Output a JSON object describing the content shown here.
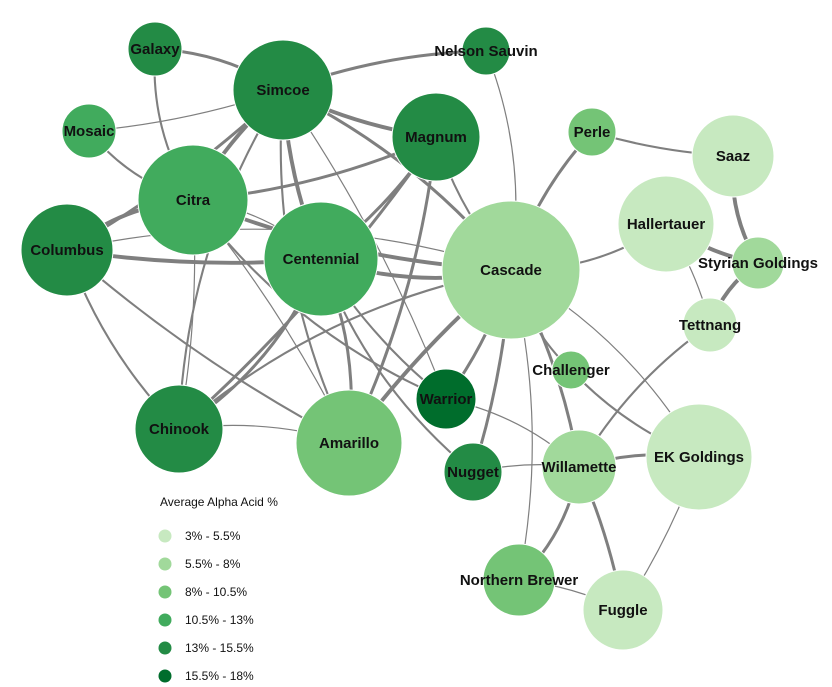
{
  "legend": {
    "title": "Average Alpha Acid %",
    "bins": [
      {
        "label": "3% - 5.5%",
        "color": "#c7e9c0"
      },
      {
        "label": "5.5% - 8%",
        "color": "#a1d99b"
      },
      {
        "label": "8% - 10.5%",
        "color": "#74c476"
      },
      {
        "label": "10.5% - 13%",
        "color": "#41ab5d"
      },
      {
        "label": "13% - 15.5%",
        "color": "#238b45"
      },
      {
        "label": "15.5% - 18%",
        "color": "#006d2c"
      }
    ]
  },
  "nodes": [
    {
      "id": "galaxy",
      "label": "Galaxy",
      "bin": 4
    },
    {
      "id": "nelson-sauvin",
      "label": "Nelson Sauvin",
      "bin": 4
    },
    {
      "id": "simcoe",
      "label": "Simcoe",
      "bin": 4
    },
    {
      "id": "mosaic",
      "label": "Mosaic",
      "bin": 3
    },
    {
      "id": "magnum",
      "label": "Magnum",
      "bin": 4
    },
    {
      "id": "perle",
      "label": "Perle",
      "bin": 2
    },
    {
      "id": "saaz",
      "label": "Saaz",
      "bin": 0
    },
    {
      "id": "citra",
      "label": "Citra",
      "bin": 3
    },
    {
      "id": "hallertauer",
      "label": "Hallertauer",
      "bin": 0
    },
    {
      "id": "columbus",
      "label": "Columbus",
      "bin": 4
    },
    {
      "id": "centennial",
      "label": "Centennial",
      "bin": 3
    },
    {
      "id": "cascade",
      "label": "Cascade",
      "bin": 1
    },
    {
      "id": "styrian",
      "label": "Styrian Goldings",
      "bin": 1
    },
    {
      "id": "tettnang",
      "label": "Tettnang",
      "bin": 0
    },
    {
      "id": "challenger",
      "label": "Challenger",
      "bin": 2
    },
    {
      "id": "warrior",
      "label": "Warrior",
      "bin": 5
    },
    {
      "id": "chinook",
      "label": "Chinook",
      "bin": 4
    },
    {
      "id": "amarillo",
      "label": "Amarillo",
      "bin": 2
    },
    {
      "id": "ek-goldings",
      "label": "EK Goldings",
      "bin": 0
    },
    {
      "id": "nugget",
      "label": "Nugget",
      "bin": 4
    },
    {
      "id": "willamette",
      "label": "Willamette",
      "bin": 1
    },
    {
      "id": "northern",
      "label": "Northern Brewer",
      "bin": 2
    },
    {
      "id": "fuggle",
      "label": "Fuggle",
      "bin": 0
    }
  ],
  "edges": [
    [
      "galaxy",
      "simcoe"
    ],
    [
      "galaxy",
      "citra"
    ],
    [
      "simcoe",
      "nelson-sauvin"
    ],
    [
      "simcoe",
      "mosaic"
    ],
    [
      "simcoe",
      "citra"
    ],
    [
      "simcoe",
      "columbus"
    ],
    [
      "simcoe",
      "centennial"
    ],
    [
      "simcoe",
      "cascade"
    ],
    [
      "simcoe",
      "chinook"
    ],
    [
      "simcoe",
      "amarillo"
    ],
    [
      "simcoe",
      "warrior"
    ],
    [
      "simcoe",
      "magnum"
    ],
    [
      "nelson-sauvin",
      "cascade"
    ],
    [
      "mosaic",
      "citra"
    ],
    [
      "magnum",
      "citra"
    ],
    [
      "magnum",
      "cascade"
    ],
    [
      "magnum",
      "centennial"
    ],
    [
      "magnum",
      "chinook"
    ],
    [
      "magnum",
      "amarillo"
    ],
    [
      "citra",
      "columbus"
    ],
    [
      "citra",
      "centennial"
    ],
    [
      "citra",
      "cascade"
    ],
    [
      "citra",
      "chinook"
    ],
    [
      "citra",
      "amarillo"
    ],
    [
      "citra",
      "warrior"
    ],
    [
      "columbus",
      "centennial"
    ],
    [
      "columbus",
      "cascade"
    ],
    [
      "columbus",
      "chinook"
    ],
    [
      "columbus",
      "amarillo"
    ],
    [
      "centennial",
      "cascade"
    ],
    [
      "centennial",
      "chinook"
    ],
    [
      "centennial",
      "amarillo"
    ],
    [
      "centennial",
      "warrior"
    ],
    [
      "centennial",
      "nugget"
    ],
    [
      "cascade",
      "chinook"
    ],
    [
      "cascade",
      "amarillo"
    ],
    [
      "cascade",
      "perle"
    ],
    [
      "cascade",
      "hallertauer"
    ],
    [
      "cascade",
      "challenger"
    ],
    [
      "cascade",
      "willamette"
    ],
    [
      "cascade",
      "nugget"
    ],
    [
      "cascade",
      "northern"
    ],
    [
      "cascade",
      "warrior"
    ],
    [
      "cascade",
      "ek-goldings"
    ],
    [
      "chinook",
      "amarillo"
    ],
    [
      "warrior",
      "willamette"
    ],
    [
      "nugget",
      "willamette"
    ],
    [
      "perle",
      "saaz"
    ],
    [
      "saaz",
      "styrian"
    ],
    [
      "hallertauer",
      "styrian"
    ],
    [
      "hallertauer",
      "tettnang"
    ],
    [
      "styrian",
      "tettnang"
    ],
    [
      "tettnang",
      "willamette"
    ],
    [
      "challenger",
      "ek-goldings"
    ],
    [
      "willamette",
      "fuggle"
    ],
    [
      "willamette",
      "northern"
    ],
    [
      "willamette",
      "ek-goldings"
    ],
    [
      "northern",
      "fuggle"
    ],
    [
      "ek-goldings",
      "fuggle"
    ]
  ]
}
